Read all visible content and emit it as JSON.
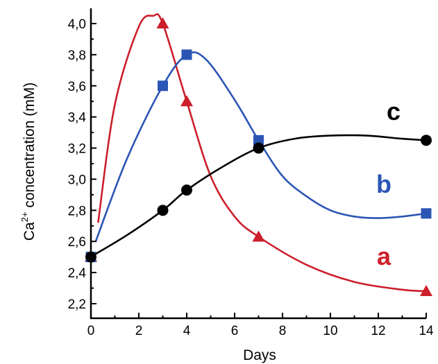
{
  "chart_data": {
    "type": "line",
    "xlabel": "Days",
    "ylabel": {
      "prefix": "Ca",
      "sup": "2+",
      "suffix": " concentration (mM)"
    },
    "xlim": [
      0,
      14
    ],
    "ylim": [
      2.2,
      4.05
    ],
    "xticks": [
      0,
      2,
      4,
      6,
      8,
      10,
      12,
      14
    ],
    "xtick_labels": [
      "0",
      "2",
      "4",
      "6",
      "8",
      "10",
      "12",
      "14"
    ],
    "yticks": [
      2.2,
      2.4,
      2.6,
      2.8,
      3.0,
      3.2,
      3.4,
      3.6,
      3.8,
      4.0
    ],
    "ytick_labels": [
      "2,2",
      "2,4",
      "2,6",
      "2,8",
      "3,0",
      "3,2",
      "3,4",
      "3,6",
      "3,8",
      "4,0"
    ],
    "grid": false,
    "series": [
      {
        "name": "a",
        "color": "#cc1f2b",
        "marker": "triangle",
        "points": [
          [
            0,
            2.5
          ],
          [
            3,
            4.0
          ],
          [
            4,
            3.5
          ],
          [
            7,
            2.63
          ],
          [
            14,
            2.28
          ]
        ],
        "curve": [
          [
            0.3,
            2.72
          ],
          [
            1,
            3.48
          ],
          [
            2,
            3.98
          ],
          [
            2.6,
            4.05
          ],
          [
            3,
            4.0
          ],
          [
            4,
            3.5
          ],
          [
            5,
            3.02
          ],
          [
            6,
            2.76
          ],
          [
            7,
            2.63
          ],
          [
            9,
            2.45
          ],
          [
            11,
            2.34
          ],
          [
            13,
            2.29
          ],
          [
            14,
            2.28
          ]
        ]
      },
      {
        "name": "b",
        "color": "#2b55b5",
        "marker": "square",
        "points": [
          [
            0,
            2.5
          ],
          [
            3,
            3.6
          ],
          [
            4,
            3.8
          ],
          [
            7,
            3.25
          ],
          [
            14,
            2.78
          ]
        ],
        "curve": [
          [
            0.2,
            2.6
          ],
          [
            1.5,
            3.13
          ],
          [
            3,
            3.6
          ],
          [
            4,
            3.8
          ],
          [
            4.8,
            3.77
          ],
          [
            6,
            3.51
          ],
          [
            7,
            3.25
          ],
          [
            8,
            3.02
          ],
          [
            9,
            2.89
          ],
          [
            10,
            2.8
          ],
          [
            11,
            2.76
          ],
          [
            12,
            2.75
          ],
          [
            13,
            2.76
          ],
          [
            14,
            2.78
          ]
        ]
      },
      {
        "name": "c",
        "color": "#000000",
        "marker": "circle",
        "points": [
          [
            0,
            2.5
          ],
          [
            3,
            2.8
          ],
          [
            4,
            2.93
          ],
          [
            7,
            3.2
          ],
          [
            14,
            3.25
          ]
        ],
        "curve": [
          [
            0.2,
            2.52
          ],
          [
            1.5,
            2.64
          ],
          [
            3,
            2.8
          ],
          [
            4,
            2.93
          ],
          [
            5.5,
            3.08
          ],
          [
            7,
            3.2
          ],
          [
            8.5,
            3.26
          ],
          [
            10,
            3.28
          ],
          [
            11.5,
            3.28
          ],
          [
            13,
            3.26
          ],
          [
            14,
            3.25
          ]
        ]
      }
    ]
  }
}
